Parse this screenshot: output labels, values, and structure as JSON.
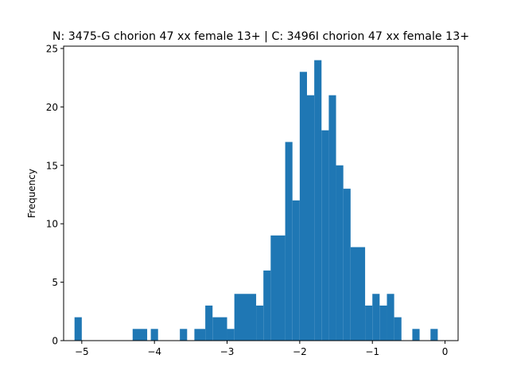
{
  "chart_data": {
    "type": "bar",
    "title": "N: 3475-G chorion 47 xx female 13+ | C: 3496I chorion 47 xx female 13+",
    "xlabel": "",
    "ylabel": "Frequency",
    "xlim": [
      -5.25,
      0.18
    ],
    "ylim": [
      0,
      25.2
    ],
    "xticks": [
      -5,
      -4,
      -3,
      -2,
      -1,
      0
    ],
    "xtick_labels": [
      "−5",
      "−4",
      "−3",
      "−2",
      "−1",
      "0"
    ],
    "yticks": [
      0,
      5,
      10,
      15,
      20,
      25
    ],
    "ytick_labels": [
      "0",
      "5",
      "10",
      "15",
      "20",
      "25"
    ],
    "grid": false,
    "legend": "none",
    "bar_color": "#1f77b4",
    "bins": [
      {
        "x0": -5.1,
        "x1": -5.0,
        "value": 2
      },
      {
        "x0": -4.3,
        "x1": -4.1,
        "value": 1
      },
      {
        "x0": -4.05,
        "x1": -3.95,
        "value": 1
      },
      {
        "x0": -3.65,
        "x1": -3.55,
        "value": 1
      },
      {
        "x0": -3.45,
        "x1": -3.3,
        "value": 1
      },
      {
        "x0": -3.3,
        "x1": -3.2,
        "value": 3
      },
      {
        "x0": -3.2,
        "x1": -3.0,
        "value": 2
      },
      {
        "x0": -3.0,
        "x1": -2.9,
        "value": 1
      },
      {
        "x0": -2.9,
        "x1": -2.6,
        "value": 4
      },
      {
        "x0": -2.6,
        "x1": -2.5,
        "value": 3
      },
      {
        "x0": -2.5,
        "x1": -2.4,
        "value": 6
      },
      {
        "x0": -2.4,
        "x1": -2.2,
        "value": 9
      },
      {
        "x0": -2.2,
        "x1": -2.1,
        "value": 17
      },
      {
        "x0": -2.1,
        "x1": -2.0,
        "value": 12
      },
      {
        "x0": -2.0,
        "x1": -1.9,
        "value": 23
      },
      {
        "x0": -1.9,
        "x1": -1.8,
        "value": 21
      },
      {
        "x0": -1.8,
        "x1": -1.7,
        "value": 24
      },
      {
        "x0": -1.7,
        "x1": -1.6,
        "value": 18
      },
      {
        "x0": -1.6,
        "x1": -1.5,
        "value": 21
      },
      {
        "x0": -1.5,
        "x1": -1.4,
        "value": 15
      },
      {
        "x0": -1.4,
        "x1": -1.3,
        "value": 13
      },
      {
        "x0": -1.3,
        "x1": -1.1,
        "value": 8
      },
      {
        "x0": -1.1,
        "x1": -1.0,
        "value": 3
      },
      {
        "x0": -1.0,
        "x1": -0.9,
        "value": 4
      },
      {
        "x0": -0.9,
        "x1": -0.8,
        "value": 3
      },
      {
        "x0": -0.8,
        "x1": -0.7,
        "value": 4
      },
      {
        "x0": -0.7,
        "x1": -0.6,
        "value": 2
      },
      {
        "x0": -0.45,
        "x1": -0.35,
        "value": 1
      },
      {
        "x0": -0.2,
        "x1": -0.1,
        "value": 1
      }
    ]
  }
}
